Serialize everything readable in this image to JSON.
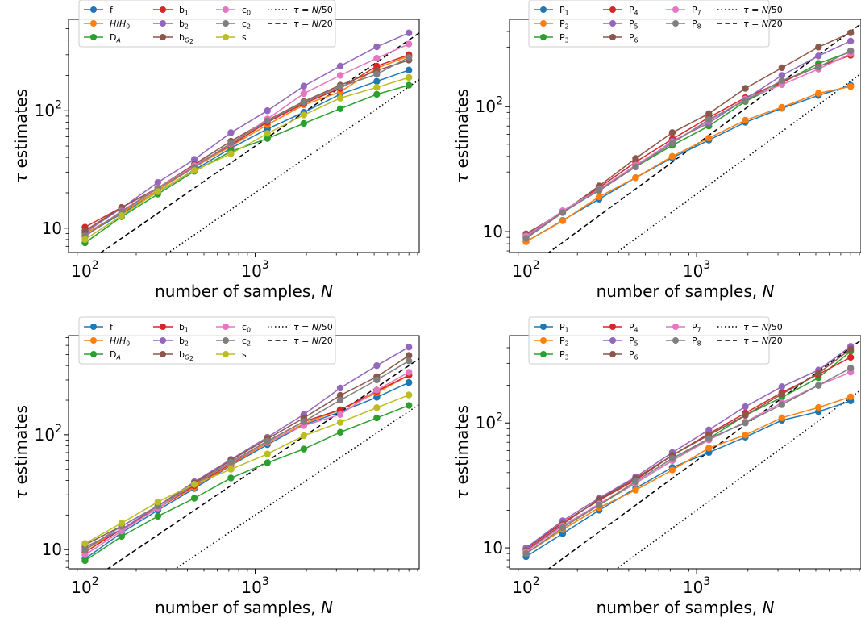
{
  "chart_data": [
    {
      "type": "line",
      "xlabel": "number of samples, N",
      "ylabel": "τ estimates",
      "xscale": "log",
      "yscale": "log",
      "xlim": [
        80,
        9200
      ],
      "ylim": [
        6.2,
        600
      ],
      "x_ticks": [
        {
          "value": 100,
          "base": "10",
          "exp": "2"
        },
        {
          "value": 1000,
          "base": "10",
          "exp": "3"
        }
      ],
      "y_ticks": [
        {
          "value": 10,
          "label": "10"
        },
        {
          "value": 100,
          "base": "10",
          "exp": "2"
        }
      ],
      "legend_position": "top",
      "legend_columns": [
        [
          "f",
          "H/H0",
          "DA"
        ],
        [
          "b1",
          "b2",
          "bG2"
        ],
        [
          "c0",
          "c2",
          "s"
        ],
        [
          "tau50",
          "tau20"
        ]
      ],
      "x": [
        100,
        164,
        268,
        439,
        720,
        1180,
        1930,
        3160,
        5180,
        8000
      ],
      "series": [
        {
          "key": "f",
          "name": "f",
          "color": "#1f77b4",
          "values": [
            8.7,
            13.3,
            20.3,
            31.3,
            48,
            70,
            97,
            138,
            178,
            222
          ]
        },
        {
          "key": "H/H0",
          "name": "H/H0",
          "color": "#ff7f0e",
          "values": [
            9,
            13.5,
            21,
            33,
            50,
            76,
            112,
            145,
            230,
            292
          ]
        },
        {
          "key": "DA",
          "name": "DA",
          "color": "#2ca02c",
          "values": [
            7.5,
            12.5,
            19.5,
            30.5,
            45,
            58,
            78,
            104,
            138,
            165
          ]
        },
        {
          "key": "b1",
          "name": "b1",
          "color": "#d62728",
          "values": [
            10.2,
            15,
            22,
            34.5,
            51,
            80,
            115,
            155,
            240,
            300
          ]
        },
        {
          "key": "b2",
          "name": "b2",
          "color": "#9467bd",
          "values": [
            9.2,
            14.8,
            24.5,
            38.5,
            65,
            100,
            162,
            240,
            350,
            460
          ]
        },
        {
          "key": "bG2",
          "name": "bG2",
          "color": "#8c564b",
          "values": [
            9.5,
            15,
            22,
            35,
            55,
            83,
            120,
            165,
            220,
            270
          ]
        },
        {
          "key": "c0",
          "name": "c0",
          "color": "#e377c2",
          "values": [
            8.5,
            14,
            22,
            34,
            52,
            85,
            140,
            200,
            280,
            370
          ]
        },
        {
          "key": "c2",
          "name": "c2",
          "color": "#7f7f7f",
          "values": [
            8.6,
            13.8,
            21.8,
            33,
            53,
            82,
            118,
            160,
            205,
            285
          ]
        },
        {
          "key": "s",
          "name": "s",
          "color": "#bcbd22",
          "values": [
            8,
            12.8,
            20.5,
            31,
            43,
            64,
            92,
            128,
            158,
            192
          ]
        }
      ],
      "reference_lines": [
        {
          "key": "tau50",
          "name": "τ = N/50",
          "style": "dotted",
          "divisor": 50
        },
        {
          "key": "tau20",
          "name": "τ = N/20",
          "style": "dashed",
          "divisor": 20
        }
      ]
    },
    {
      "type": "line",
      "xlabel": "number of samples, N",
      "ylabel": "τ estimates",
      "xscale": "log",
      "yscale": "log",
      "xlim": [
        80,
        9200
      ],
      "ylim": [
        6.8,
        500
      ],
      "x_ticks": [
        {
          "value": 100,
          "base": "10",
          "exp": "2"
        },
        {
          "value": 1000,
          "base": "10",
          "exp": "3"
        }
      ],
      "y_ticks": [
        {
          "value": 10,
          "label": "10"
        },
        {
          "value": 100,
          "base": "10",
          "exp": "2"
        }
      ],
      "legend_position": "top",
      "legend_columns": [
        [
          "P1",
          "P2",
          "P3"
        ],
        [
          "P4",
          "P5",
          "P6"
        ],
        [
          "P7",
          "P8"
        ],
        [
          "tau50",
          "tau20"
        ]
      ],
      "x": [
        100,
        164,
        268,
        439,
        720,
        1180,
        1930,
        3160,
        5180,
        8000
      ],
      "series": [
        {
          "key": "P1",
          "name": "P1",
          "color": "#1f77b4",
          "values": [
            8.3,
            12.3,
            18.2,
            27,
            39,
            54,
            75,
            97,
            123,
            148
          ]
        },
        {
          "key": "P2",
          "name": "P2",
          "color": "#ff7f0e",
          "values": [
            8.3,
            12.2,
            19,
            27,
            40,
            56,
            78,
            99,
            128,
            145
          ]
        },
        {
          "key": "P3",
          "name": "P3",
          "color": "#2ca02c",
          "values": [
            9,
            14.5,
            21.5,
            33,
            49,
            70,
            110,
            155,
            222,
            275
          ]
        },
        {
          "key": "P4",
          "name": "P4",
          "color": "#d62728",
          "values": [
            9.3,
            14.2,
            22.5,
            36,
            55,
            82,
            118,
            158,
            210,
            258
          ]
        },
        {
          "key": "P5",
          "name": "P5",
          "color": "#9467bd",
          "values": [
            9,
            14.6,
            21.2,
            33,
            53,
            74,
            115,
            178,
            255,
            335
          ]
        },
        {
          "key": "P6",
          "name": "P6",
          "color": "#8c564b",
          "values": [
            9.6,
            14.3,
            23.2,
            38.5,
            62,
            88,
            140,
            205,
            300,
            390
          ]
        },
        {
          "key": "P7",
          "name": "P7",
          "color": "#e377c2",
          "values": [
            9.2,
            14.7,
            21.8,
            34,
            52,
            77,
            115,
            150,
            200,
            265
          ]
        },
        {
          "key": "P8",
          "name": "P8",
          "color": "#7f7f7f",
          "values": [
            8.8,
            14.2,
            21.5,
            33,
            51,
            79,
            112,
            162,
            208,
            280
          ]
        }
      ],
      "reference_lines": [
        {
          "key": "tau50",
          "name": "τ = N/50",
          "style": "dotted",
          "divisor": 50
        },
        {
          "key": "tau20",
          "name": "τ = N/20",
          "style": "dashed",
          "divisor": 20
        }
      ]
    },
    {
      "type": "line",
      "xlabel": "number of samples, N",
      "ylabel": "τ estimates",
      "xscale": "log",
      "yscale": "log",
      "xlim": [
        80,
        9200
      ],
      "ylim": [
        6.8,
        730
      ],
      "x_ticks": [
        {
          "value": 100,
          "base": "10",
          "exp": "2"
        },
        {
          "value": 1000,
          "base": "10",
          "exp": "3"
        }
      ],
      "y_ticks": [
        {
          "value": 10,
          "label": "10"
        },
        {
          "value": 100,
          "base": "10",
          "exp": "2"
        }
      ],
      "legend_position": "top",
      "legend_columns": [
        [
          "f",
          "H/H0",
          "DA"
        ],
        [
          "b1",
          "b2",
          "bG2"
        ],
        [
          "c0",
          "c2",
          "s"
        ],
        [
          "tau50",
          "tau20"
        ]
      ],
      "x": [
        100,
        164,
        268,
        439,
        720,
        1180,
        1930,
        3160,
        5180,
        8000
      ],
      "series": [
        {
          "key": "f",
          "name": "f",
          "color": "#1f77b4",
          "values": [
            8.3,
            14,
            22,
            34,
            54,
            82,
            122,
            158,
            212,
            285
          ]
        },
        {
          "key": "H/H0",
          "name": "H/H0",
          "color": "#ff7f0e",
          "values": [
            10,
            15,
            23,
            35,
            55,
            85,
            125,
            165,
            232,
            330
          ]
        },
        {
          "key": "DA",
          "name": "DA",
          "color": "#2ca02c",
          "values": [
            8,
            13,
            19.5,
            28,
            42,
            57,
            75,
            105,
            140,
            180
          ]
        },
        {
          "key": "b1",
          "name": "b1",
          "color": "#d62728",
          "values": [
            9.5,
            15,
            23,
            36,
            56,
            88,
            130,
            165,
            240,
            330
          ]
        },
        {
          "key": "b2",
          "name": "b2",
          "color": "#9467bd",
          "values": [
            10.5,
            15,
            24,
            39,
            61,
            95,
            150,
            255,
            400,
            580
          ]
        },
        {
          "key": "bG2",
          "name": "bG2",
          "color": "#8c564b",
          "values": [
            11,
            16,
            24,
            38,
            60,
            92,
            140,
            220,
            320,
            490
          ]
        },
        {
          "key": "c0",
          "name": "c0",
          "color": "#e377c2",
          "values": [
            9,
            14.5,
            23,
            37,
            57,
            87,
            120,
            150,
            245,
            350
          ]
        },
        {
          "key": "c2",
          "name": "c2",
          "color": "#7f7f7f",
          "values": [
            10,
            16,
            24,
            37,
            58,
            88,
            130,
            200,
            300,
            440
          ]
        },
        {
          "key": "s",
          "name": "s",
          "color": "#bcbd22",
          "values": [
            11.3,
            17,
            26,
            37,
            50,
            68,
            98,
            128,
            172,
            222
          ]
        }
      ],
      "reference_lines": [
        {
          "key": "tau50",
          "name": "τ = N/50",
          "style": "dotted",
          "divisor": 50
        },
        {
          "key": "tau20",
          "name": "τ = N/20",
          "style": "dashed",
          "divisor": 20
        }
      ]
    },
    {
      "type": "line",
      "xlabel": "number of samples, N",
      "ylabel": "τ estimates",
      "xscale": "log",
      "yscale": "log",
      "xlim": [
        80,
        9200
      ],
      "ylim": [
        6.8,
        500
      ],
      "x_ticks": [
        {
          "value": 100,
          "base": "10",
          "exp": "2"
        },
        {
          "value": 1000,
          "base": "10",
          "exp": "3"
        }
      ],
      "y_ticks": [
        {
          "value": 10,
          "label": "10"
        },
        {
          "value": 100,
          "base": "10",
          "exp": "2"
        }
      ],
      "legend_position": "top",
      "legend_columns": [
        [
          "P1",
          "P2",
          "P3"
        ],
        [
          "P4",
          "P5",
          "P6"
        ],
        [
          "P7",
          "P8"
        ],
        [
          "tau50",
          "tau20"
        ]
      ],
      "x": [
        100,
        164,
        268,
        439,
        720,
        1180,
        1930,
        3160,
        5180,
        8000
      ],
      "series": [
        {
          "key": "P1",
          "name": "P1",
          "color": "#1f77b4",
          "values": [
            8.5,
            13,
            20,
            30,
            44,
            58,
            77,
            105,
            123,
            150
          ]
        },
        {
          "key": "P2",
          "name": "P2",
          "color": "#ff7f0e",
          "values": [
            9,
            14,
            21,
            29,
            42,
            63,
            80,
            110,
            133,
            162
          ]
        },
        {
          "key": "P3",
          "name": "P3",
          "color": "#2ca02c",
          "values": [
            9.5,
            15,
            22,
            33,
            50,
            75,
            115,
            160,
            230,
            375
          ]
        },
        {
          "key": "P4",
          "name": "P4",
          "color": "#d62728",
          "values": [
            9.8,
            16,
            24,
            35,
            55,
            82,
            120,
            175,
            245,
            335
          ]
        },
        {
          "key": "P5",
          "name": "P5",
          "color": "#9467bd",
          "values": [
            10,
            16.5,
            25,
            37,
            58,
            88,
            135,
            195,
            265,
            410
          ]
        },
        {
          "key": "P6",
          "name": "P6",
          "color": "#8c564b",
          "values": [
            9.5,
            15.5,
            24.5,
            36,
            55,
            80,
            115,
            170,
            250,
            390
          ]
        },
        {
          "key": "P7",
          "name": "P7",
          "color": "#e377c2",
          "values": [
            9.3,
            15,
            22.5,
            33,
            50,
            73,
            102,
            145,
            200,
            255
          ]
        },
        {
          "key": "P8",
          "name": "P8",
          "color": "#7f7f7f",
          "values": [
            9,
            14.5,
            22,
            34,
            52,
            75,
            100,
            140,
            200,
            275
          ]
        }
      ],
      "reference_lines": [
        {
          "key": "tau50",
          "name": "τ = N/50",
          "style": "dotted",
          "divisor": 50
        },
        {
          "key": "tau20",
          "name": "τ = N/20",
          "style": "dashed",
          "divisor": 20
        }
      ]
    }
  ]
}
